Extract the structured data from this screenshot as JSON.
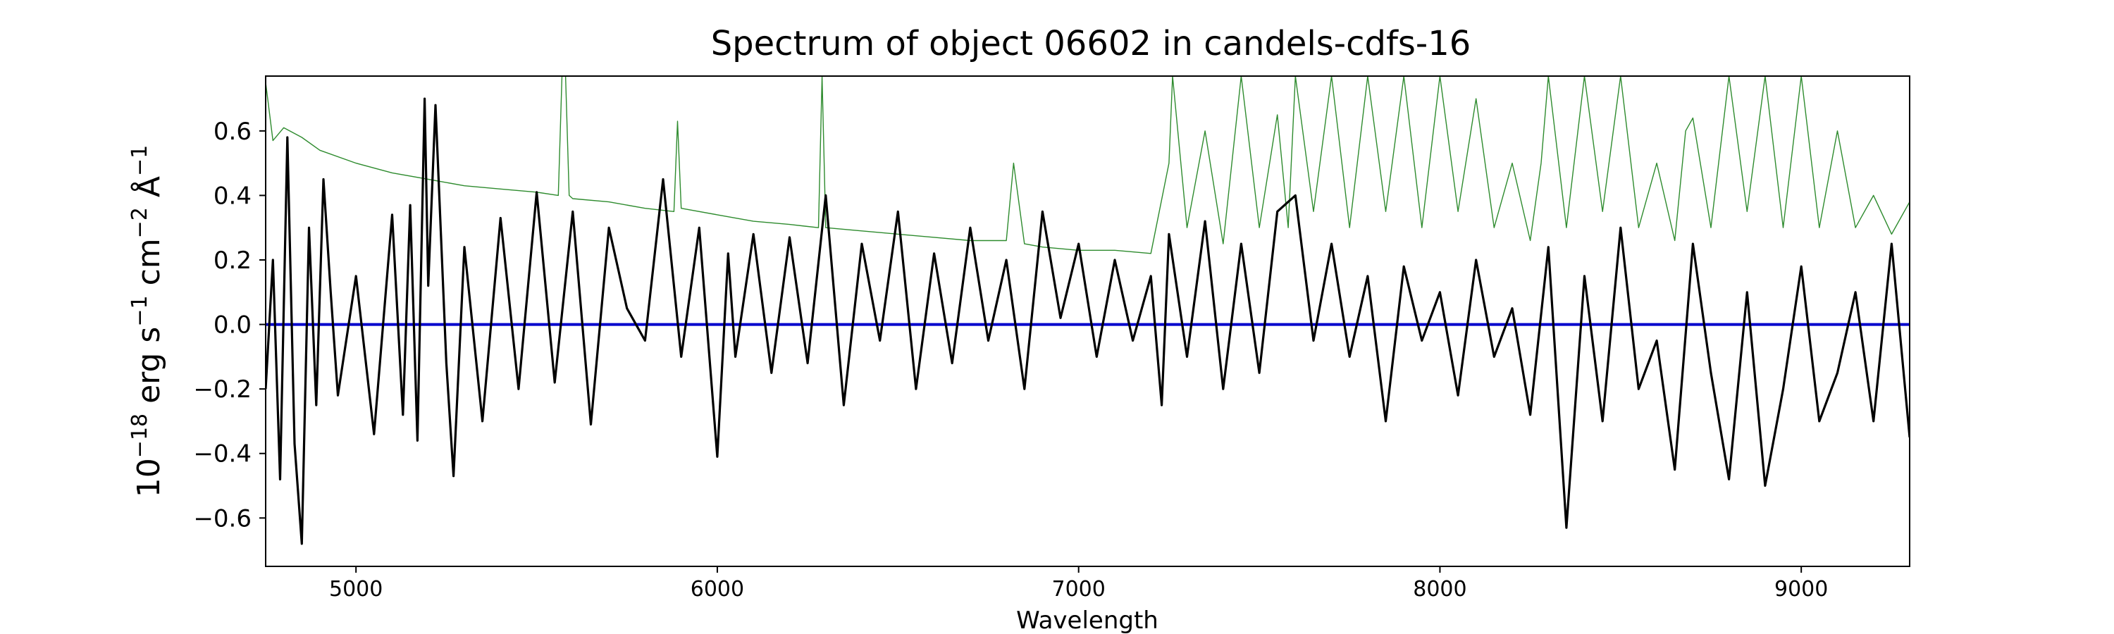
{
  "chart_data": {
    "type": "line",
    "title": "Spectrum of object 06602 in candels-cdfs-16",
    "xlabel": "Wavelength",
    "ylabel_parts": {
      "base": "10",
      "exp1": "−18",
      "unit1": " erg s",
      "exp2": "−1",
      "unit2": " cm",
      "exp3": "−2",
      "unit3": " Å",
      "exp4": "−1"
    },
    "xlim": [
      4750,
      9300
    ],
    "ylim": [
      -0.75,
      0.77
    ],
    "x_ticks": [
      5000,
      6000,
      7000,
      8000,
      9000
    ],
    "y_ticks": [
      -0.6,
      -0.4,
      -0.2,
      0.0,
      0.2,
      0.4,
      0.6
    ],
    "grid": false,
    "colors": {
      "flux": "#000000",
      "error": "#2e8b2e",
      "zero": "#0000cc"
    },
    "series": [
      {
        "role": "flux",
        "style": "thick noisy line",
        "x": [
          4750,
          4770,
          4790,
          4810,
          4830,
          4850,
          4870,
          4890,
          4910,
          4930,
          4950,
          5000,
          5050,
          5100,
          5130,
          5150,
          5170,
          5190,
          5200,
          5220,
          5250,
          5270,
          5300,
          5350,
          5400,
          5450,
          5500,
          5550,
          5600,
          5650,
          5700,
          5750,
          5800,
          5850,
          5900,
          5950,
          6000,
          6030,
          6050,
          6100,
          6150,
          6200,
          6250,
          6300,
          6350,
          6400,
          6450,
          6500,
          6550,
          6600,
          6650,
          6700,
          6750,
          6800,
          6850,
          6900,
          6950,
          7000,
          7050,
          7100,
          7150,
          7200,
          7230,
          7250,
          7300,
          7350,
          7400,
          7450,
          7500,
          7550,
          7600,
          7650,
          7700,
          7750,
          7800,
          7850,
          7900,
          7950,
          8000,
          8050,
          8100,
          8150,
          8200,
          8250,
          8300,
          8350,
          8400,
          8450,
          8500,
          8550,
          8600,
          8650,
          8700,
          8750,
          8800,
          8850,
          8900,
          8950,
          9000,
          9050,
          9100,
          9150,
          9200,
          9250,
          9300
        ],
        "y": [
          -0.2,
          0.2,
          -0.48,
          0.58,
          -0.37,
          -0.68,
          0.3,
          -0.25,
          0.45,
          0.1,
          -0.22,
          0.15,
          -0.34,
          0.34,
          -0.28,
          0.37,
          -0.36,
          0.7,
          0.12,
          0.68,
          -0.12,
          -0.47,
          0.24,
          -0.3,
          0.33,
          -0.2,
          0.41,
          -0.18,
          0.35,
          -0.31,
          0.3,
          0.05,
          -0.05,
          0.45,
          -0.1,
          0.3,
          -0.41,
          0.22,
          -0.1,
          0.28,
          -0.15,
          0.27,
          -0.12,
          0.4,
          -0.25,
          0.25,
          -0.05,
          0.35,
          -0.2,
          0.22,
          -0.12,
          0.3,
          -0.05,
          0.2,
          -0.2,
          0.35,
          0.02,
          0.25,
          -0.1,
          0.2,
          -0.05,
          0.15,
          -0.25,
          0.28,
          -0.1,
          0.32,
          -0.2,
          0.25,
          -0.15,
          0.35,
          0.4,
          -0.05,
          0.25,
          -0.1,
          0.15,
          -0.3,
          0.18,
          -0.05,
          0.1,
          -0.22,
          0.2,
          -0.1,
          0.05,
          -0.28,
          0.24,
          -0.63,
          0.15,
          -0.3,
          0.3,
          -0.2,
          -0.05,
          -0.45,
          0.25,
          -0.15,
          -0.48,
          0.1,
          -0.5,
          -0.2,
          0.18,
          -0.3,
          -0.15,
          0.1,
          -0.3,
          0.25,
          -0.35
        ]
      },
      {
        "role": "error",
        "style": "thin line",
        "x": [
          4750,
          4770,
          4800,
          4850,
          4900,
          5000,
          5100,
          5200,
          5300,
          5400,
          5500,
          5560,
          5570,
          5580,
          5590,
          5600,
          5700,
          5800,
          5880,
          5890,
          5900,
          6000,
          6100,
          6200,
          6280,
          6290,
          6300,
          6400,
          6500,
          6600,
          6700,
          6800,
          6820,
          6850,
          6900,
          7000,
          7100,
          7200,
          7250,
          7260,
          7300,
          7350,
          7400,
          7450,
          7500,
          7550,
          7580,
          7600,
          7650,
          7700,
          7750,
          7800,
          7850,
          7900,
          7950,
          8000,
          8050,
          8100,
          8150,
          8200,
          8250,
          8280,
          8300,
          8350,
          8400,
          8450,
          8500,
          8550,
          8600,
          8650,
          8680,
          8700,
          8750,
          8800,
          8850,
          8900,
          8950,
          9000,
          9050,
          9100,
          9150,
          9200,
          9250,
          9300
        ],
        "y": [
          0.75,
          0.57,
          0.61,
          0.58,
          0.54,
          0.5,
          0.47,
          0.45,
          0.43,
          0.42,
          0.41,
          0.4,
          0.77,
          0.77,
          0.4,
          0.39,
          0.38,
          0.36,
          0.35,
          0.63,
          0.36,
          0.34,
          0.32,
          0.31,
          0.3,
          0.77,
          0.3,
          0.29,
          0.28,
          0.27,
          0.26,
          0.26,
          0.5,
          0.25,
          0.24,
          0.23,
          0.23,
          0.22,
          0.5,
          0.77,
          0.3,
          0.6,
          0.25,
          0.77,
          0.3,
          0.65,
          0.3,
          0.77,
          0.35,
          0.77,
          0.3,
          0.77,
          0.35,
          0.77,
          0.3,
          0.77,
          0.35,
          0.7,
          0.3,
          0.5,
          0.26,
          0.5,
          0.77,
          0.3,
          0.77,
          0.35,
          0.77,
          0.3,
          0.5,
          0.26,
          0.6,
          0.64,
          0.3,
          0.77,
          0.35,
          0.77,
          0.3,
          0.77,
          0.3,
          0.6,
          0.3,
          0.4,
          0.28,
          0.38
        ]
      },
      {
        "role": "zero",
        "style": "horizontal baseline",
        "x": [
          4750,
          9300
        ],
        "y": [
          0.0,
          0.0
        ]
      }
    ]
  }
}
